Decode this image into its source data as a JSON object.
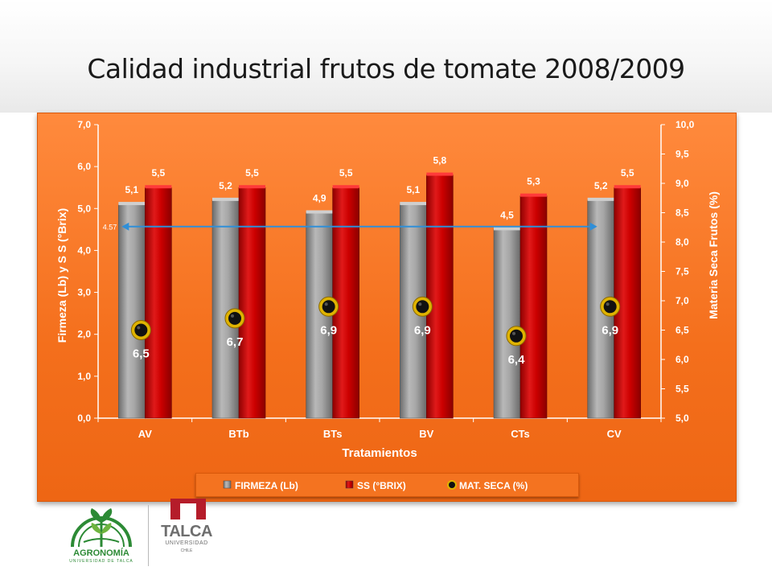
{
  "slide": {
    "title": "Calidad industrial frutos de tomate 2008/2009"
  },
  "logos": {
    "agronomia": "AGRONOMÍA",
    "agronomia_sub": "UNIVERSIDAD DE TALCA",
    "talca": "TALCA",
    "talca_sub": "UNIVERSIDAD",
    "talca_country": "CHILE"
  },
  "colors": {
    "panel": "#f46f1c",
    "firmeza": "#8c8c8c",
    "ss": "#c80000",
    "mat_seca": "#111111",
    "mat_seca_ring": "#e0b300",
    "ref_line": "#2f8fd8"
  },
  "chart_data": {
    "type": "bar",
    "title": "",
    "xlabel": "Tratamientos",
    "ylabel": "Firmeza (Lb)    y  S S (°Brix)",
    "y2label": "Materia Seca Frutos (%)",
    "categories": [
      "AV",
      "BTb",
      "BTs",
      "BV",
      "CTs",
      "CV"
    ],
    "ylim": [
      0,
      7
    ],
    "yticks": [
      "0,0",
      "1,0",
      "2,0",
      "3,0",
      "4,0",
      "5,0",
      "6,0",
      "7,0"
    ],
    "y2lim": [
      5,
      10
    ],
    "y2ticks": [
      "5,0",
      "5,5",
      "6,0",
      "6,5",
      "7,0",
      "7,5",
      "8,0",
      "8,5",
      "9,0",
      "9,5",
      "10,0"
    ],
    "grid": false,
    "legend_position": "bottom",
    "series": [
      {
        "name": "FIRMEZA (Lb)",
        "type": "bar",
        "axis": "left",
        "values": [
          5.1,
          5.2,
          4.9,
          5.1,
          4.5,
          5.2
        ],
        "labels": [
          "5,1",
          "5,2",
          "4,9",
          "5,1",
          "4,5",
          "5,2"
        ]
      },
      {
        "name": "SS (°BRIX)",
        "type": "bar",
        "axis": "left",
        "values": [
          5.5,
          5.5,
          5.5,
          5.8,
          5.3,
          5.5
        ],
        "labels": [
          "5,5",
          "5,5",
          "5,5",
          "5,8",
          "5,3",
          "5,5"
        ]
      },
      {
        "name": "MAT. SECA (%)",
        "type": "scatter",
        "axis": "right",
        "values": [
          6.5,
          6.7,
          6.9,
          6.9,
          6.4,
          6.9
        ],
        "labels": [
          "6,5",
          "6,7",
          "6,9",
          "6,9",
          "6,4",
          "6,9"
        ]
      }
    ],
    "annotations": [
      {
        "type": "reference-line",
        "axis": "left",
        "value": 4.57,
        "label": "4.57",
        "from": "AV",
        "to": "CV"
      }
    ]
  }
}
